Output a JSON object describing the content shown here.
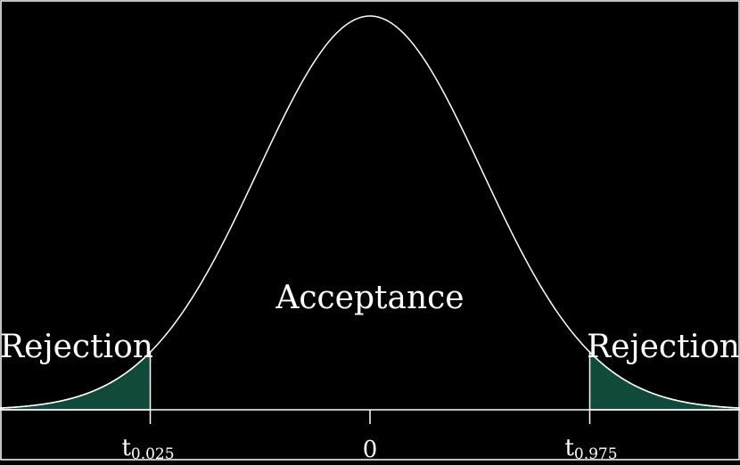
{
  "diagram": {
    "distribution": "t-distribution (two-tailed test)",
    "region_labels": {
      "center": "Acceptance",
      "left_tail": "Rejection",
      "right_tail": "Rejection"
    },
    "ticks": [
      {
        "base": "t",
        "subscript": "0.025",
        "value": -1.96
      },
      {
        "base": "",
        "subscript": "",
        "label": "0",
        "value": 0
      },
      {
        "base": "t",
        "subscript": "0.975",
        "value": 1.96
      }
    ],
    "x_range": [
      -3.3,
      3.3
    ],
    "alpha": 0.05,
    "colors": {
      "background": "#000000",
      "curve": "#ffffff",
      "rejection_fill": "#0f4a3a"
    }
  }
}
